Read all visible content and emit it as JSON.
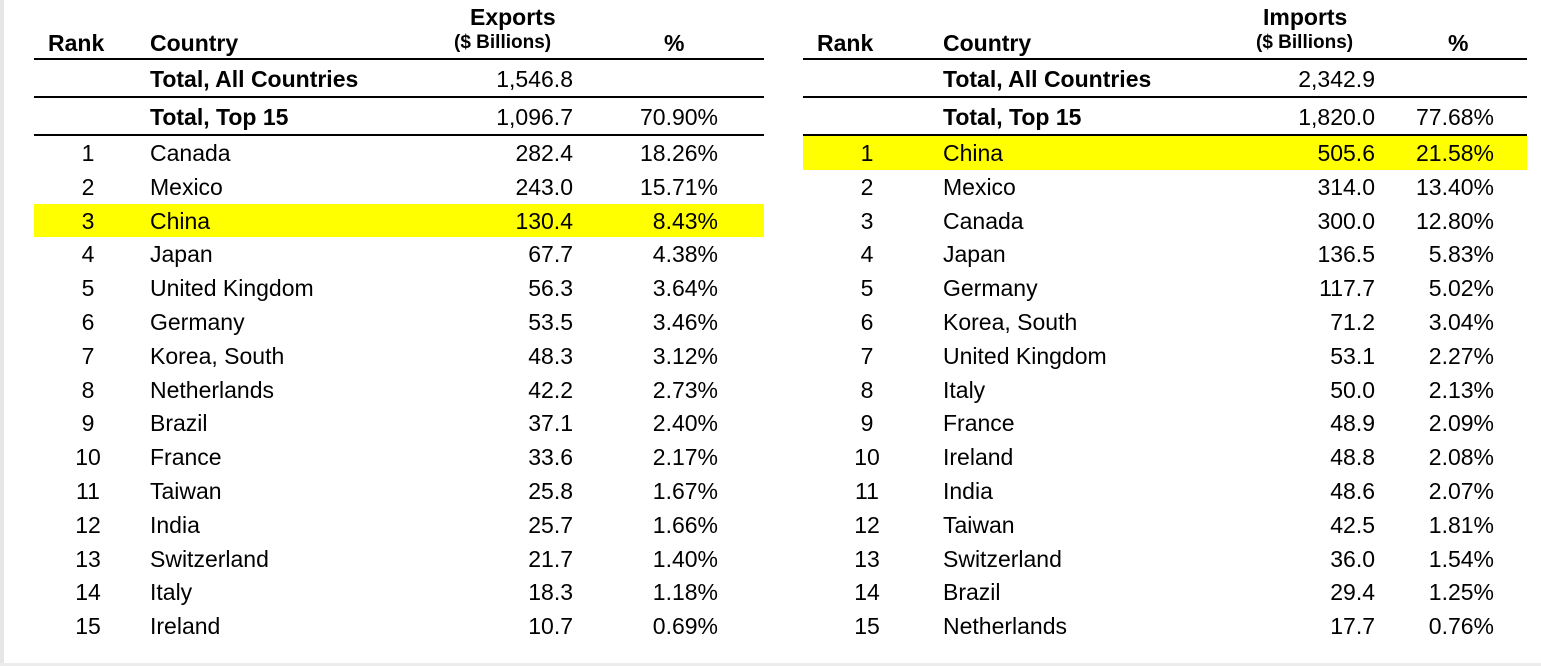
{
  "exports": {
    "headers": {
      "rank": "Rank",
      "country": "Country",
      "value_line1": "Exports",
      "value_line2": "($ Billions)",
      "pct": "%"
    },
    "total_all": {
      "label": "Total, All Countries",
      "value": "1,546.8",
      "pct": ""
    },
    "total_top": {
      "label": "Total, Top 15",
      "value": "1,096.7",
      "pct": "70.90%"
    },
    "rows": [
      {
        "rank": "1",
        "country": "Canada",
        "value": "282.4",
        "pct": "18.26%"
      },
      {
        "rank": "2",
        "country": "Mexico",
        "value": "243.0",
        "pct": "15.71%"
      },
      {
        "rank": "3",
        "country": "China",
        "value": "130.4",
        "pct": "8.43%"
      },
      {
        "rank": "4",
        "country": "Japan",
        "value": "67.7",
        "pct": "4.38%"
      },
      {
        "rank": "5",
        "country": "United Kingdom",
        "value": "56.3",
        "pct": "3.64%"
      },
      {
        "rank": "6",
        "country": "Germany",
        "value": "53.5",
        "pct": "3.46%"
      },
      {
        "rank": "7",
        "country": "Korea, South",
        "value": "48.3",
        "pct": "3.12%"
      },
      {
        "rank": "8",
        "country": "Netherlands",
        "value": "42.2",
        "pct": "2.73%"
      },
      {
        "rank": "9",
        "country": "Brazil",
        "value": "37.1",
        "pct": "2.40%"
      },
      {
        "rank": "10",
        "country": "France",
        "value": "33.6",
        "pct": "2.17%"
      },
      {
        "rank": "11",
        "country": "Taiwan",
        "value": "25.8",
        "pct": "1.67%"
      },
      {
        "rank": "12",
        "country": "India",
        "value": "25.7",
        "pct": "1.66%"
      },
      {
        "rank": "13",
        "country": "Switzerland",
        "value": "21.7",
        "pct": "1.40%"
      },
      {
        "rank": "14",
        "country": "Italy",
        "value": "18.3",
        "pct": "1.18%"
      },
      {
        "rank": "15",
        "country": "Ireland",
        "value": "10.7",
        "pct": "0.69%"
      }
    ]
  },
  "imports": {
    "headers": {
      "rank": "Rank",
      "country": "Country",
      "value_line1": "Imports",
      "value_line2": "($ Billions)",
      "pct": "%"
    },
    "total_all": {
      "label": "Total, All Countries",
      "value": "2,342.9",
      "pct": ""
    },
    "total_top": {
      "label": "Total, Top 15",
      "value": "1,820.0",
      "pct": "77.68%"
    },
    "rows": [
      {
        "rank": "1",
        "country": "China",
        "value": "505.6",
        "pct": "21.58%"
      },
      {
        "rank": "2",
        "country": "Mexico",
        "value": "314.0",
        "pct": "13.40%"
      },
      {
        "rank": "3",
        "country": "Canada",
        "value": "300.0",
        "pct": "12.80%"
      },
      {
        "rank": "4",
        "country": "Japan",
        "value": "136.5",
        "pct": "5.83%"
      },
      {
        "rank": "5",
        "country": "Germany",
        "value": "117.7",
        "pct": "5.02%"
      },
      {
        "rank": "6",
        "country": "Korea, South",
        "value": "71.2",
        "pct": "3.04%"
      },
      {
        "rank": "7",
        "country": "United Kingdom",
        "value": "53.1",
        "pct": "2.27%"
      },
      {
        "rank": "8",
        "country": "Italy",
        "value": "50.0",
        "pct": "2.13%"
      },
      {
        "rank": "9",
        "country": "France",
        "value": "48.9",
        "pct": "2.09%"
      },
      {
        "rank": "10",
        "country": "Ireland",
        "value": "48.8",
        "pct": "2.08%"
      },
      {
        "rank": "11",
        "country": "India",
        "value": "48.6",
        "pct": "2.07%"
      },
      {
        "rank": "12",
        "country": "Taiwan",
        "value": "42.5",
        "pct": "1.81%"
      },
      {
        "rank": "13",
        "country": "Switzerland",
        "value": "36.0",
        "pct": "1.54%"
      },
      {
        "rank": "14",
        "country": "Brazil",
        "value": "29.4",
        "pct": "1.25%"
      },
      {
        "rank": "15",
        "country": "Netherlands",
        "value": "17.7",
        "pct": "0.76%"
      }
    ]
  },
  "highlight": {
    "country": "China",
    "color": "#ffff00"
  }
}
